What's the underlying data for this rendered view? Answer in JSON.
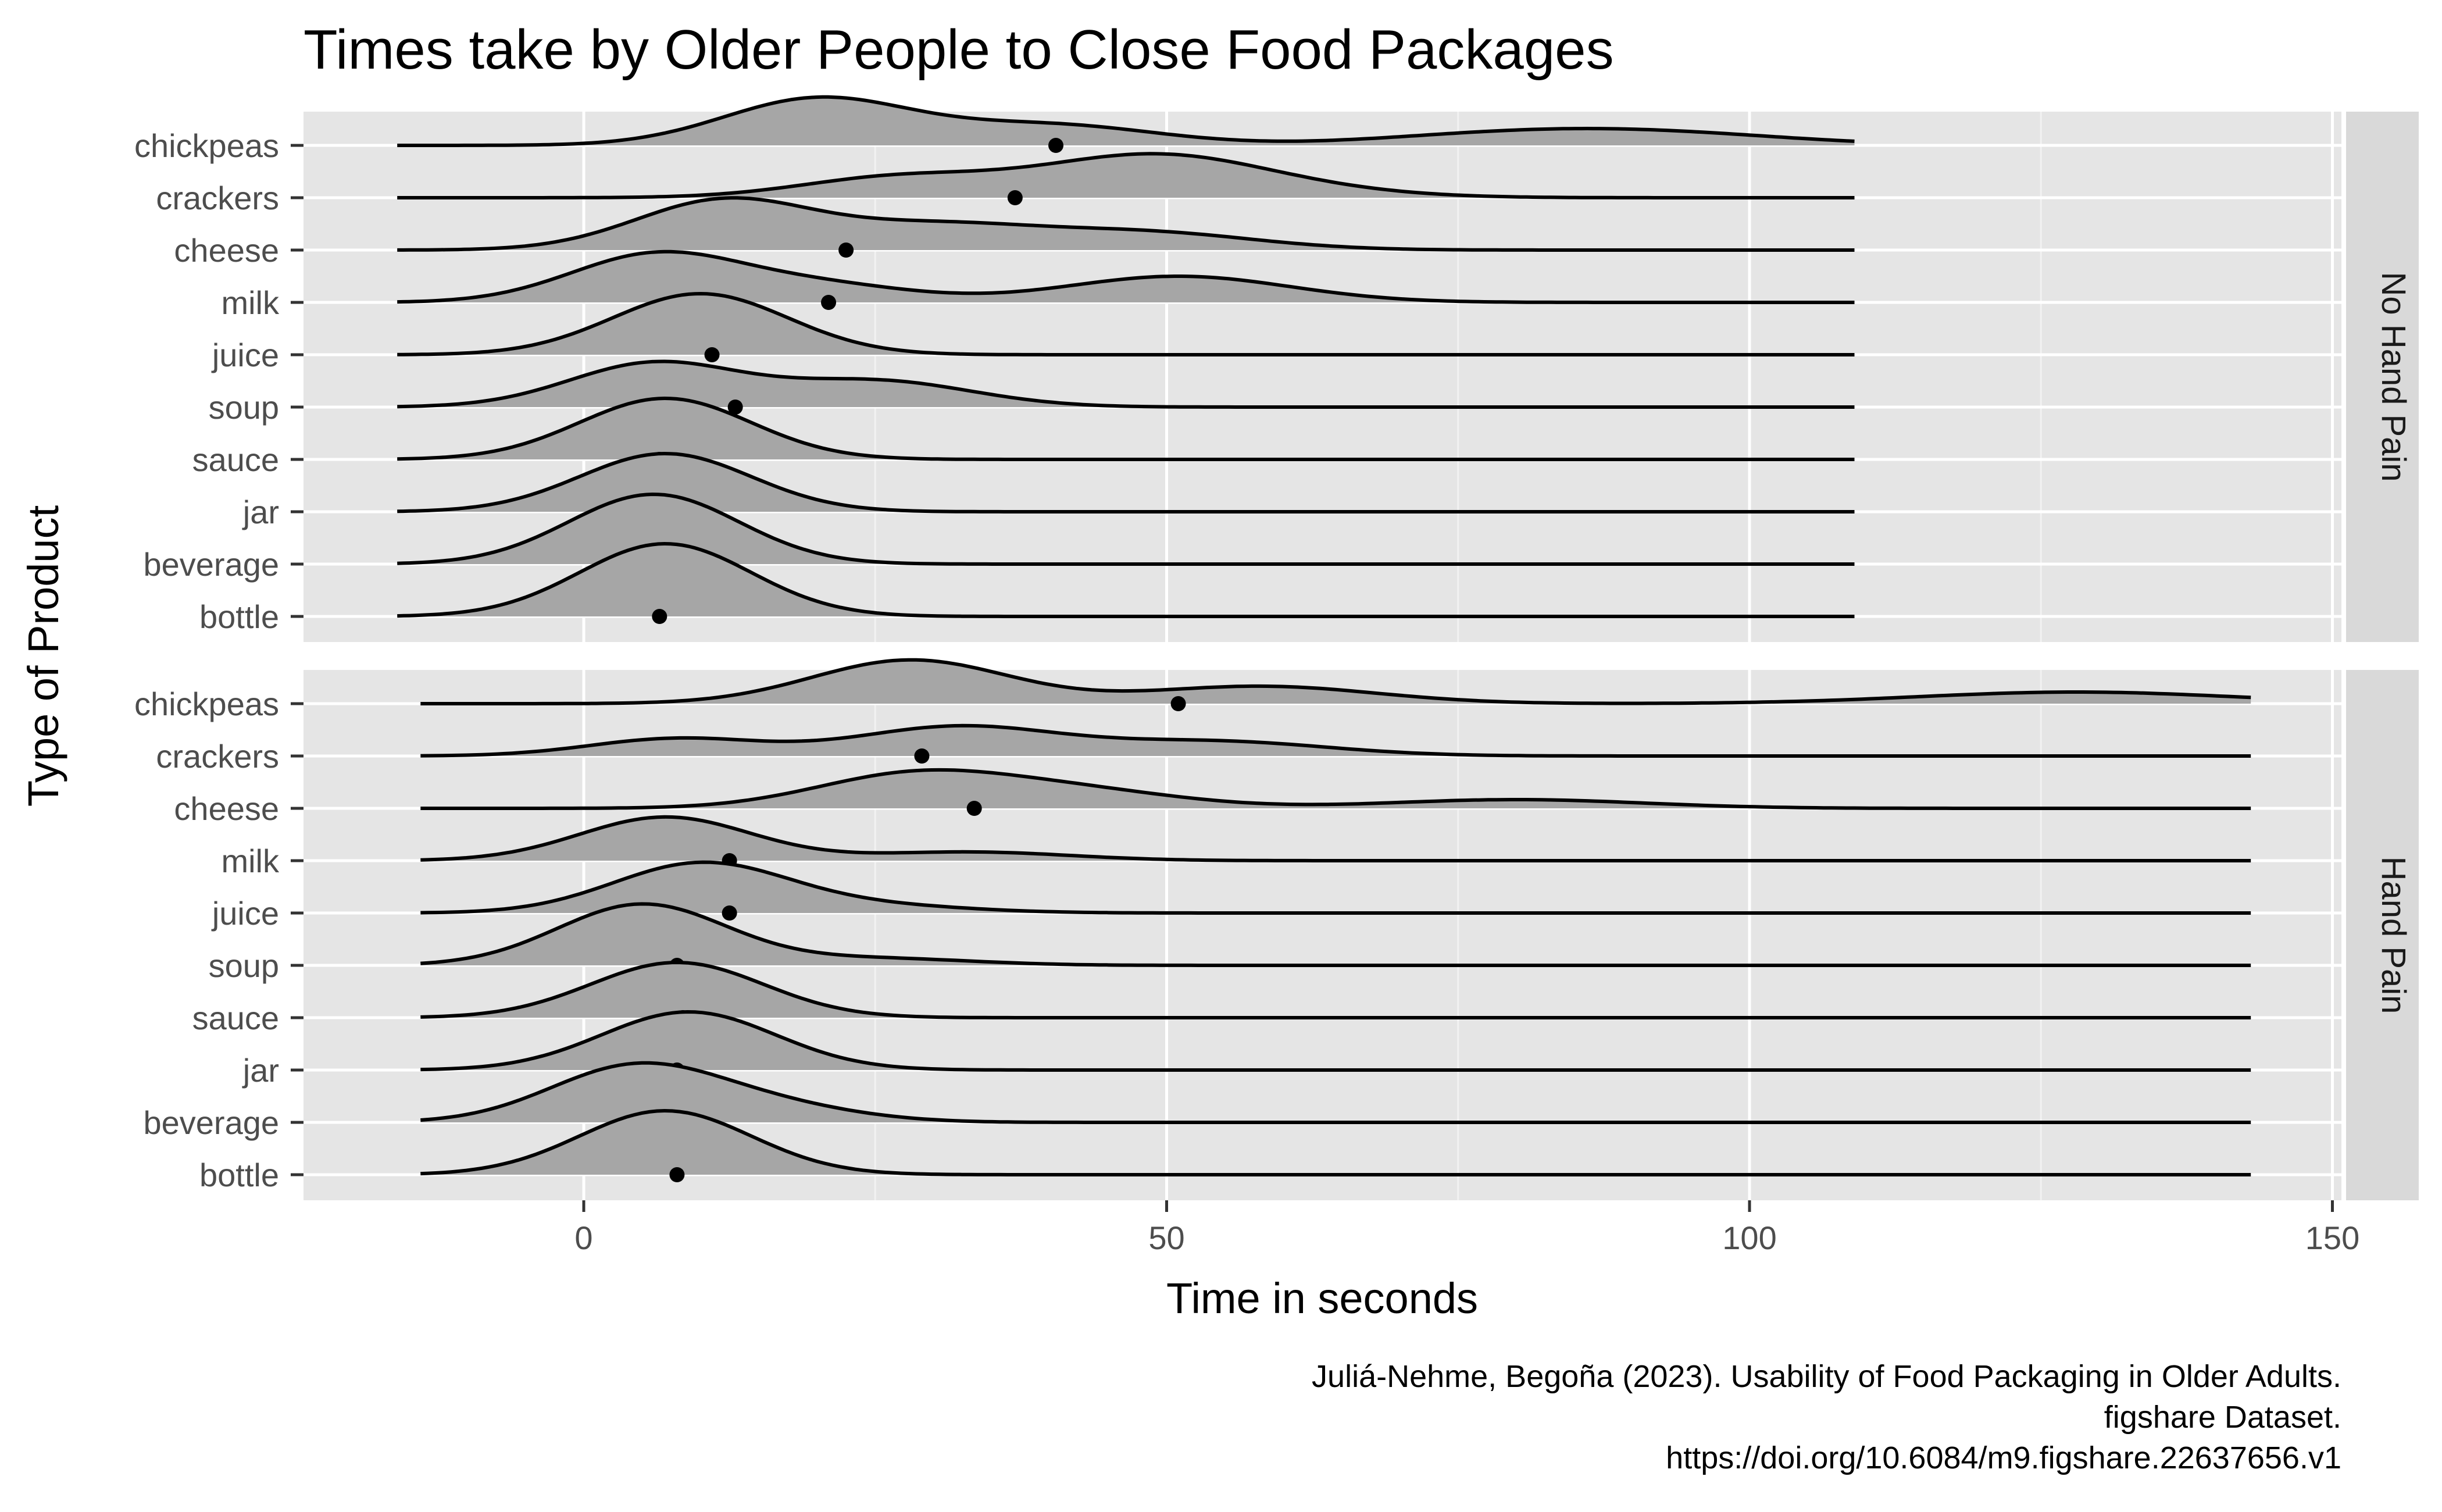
{
  "chart_data": {
    "type": "ridgeline",
    "title": "Times take by Older People to Close Food Packages",
    "xlabel": "Time in seconds",
    "ylabel": "Type of Product",
    "xlim": [
      -48,
      150
    ],
    "x_ticks": [
      0,
      50,
      100,
      150
    ],
    "caption": [
      "Juliá-Nehme, Begoña (2023). Usability of Food Packaging in Older Adults.",
      "figshare Dataset.",
      "https://doi.org/10.6084/m9.figshare.22637656.v1"
    ],
    "categories": [
      "chickpeas",
      "crackers",
      "cheese",
      "milk",
      "juice",
      "soup",
      "sauce",
      "jar",
      "beverage",
      "bottle"
    ],
    "panels": [
      {
        "label": "No Hand Pain",
        "x_range": [
          -16,
          109
        ],
        "points": [
          {
            "category": "chickpeas",
            "mean": 40.5,
            "density": [
              [
                20,
                0.8
              ],
              [
                40,
                0.35
              ],
              [
                78,
                0.15
              ],
              [
                92,
                0.2
              ]
            ]
          },
          {
            "category": "crackers",
            "mean": 37,
            "density": [
              [
                27,
                0.35
              ],
              [
                48,
                0.65
              ],
              [
                58,
                0.15
              ]
            ]
          },
          {
            "category": "cheese",
            "mean": 22.5,
            "density": [
              [
                12,
                0.85
              ],
              [
                30,
                0.4
              ],
              [
                48,
                0.3
              ]
            ]
          },
          {
            "category": "milk",
            "mean": 21,
            "density": [
              [
                6,
                0.8
              ],
              [
                20,
                0.3
              ],
              [
                51,
                0.45
              ]
            ]
          },
          {
            "category": "juice",
            "mean": 11,
            "density": [
              [
                10,
                1.05
              ]
            ]
          },
          {
            "category": "soup",
            "mean": 13,
            "density": [
              [
                6,
                0.75
              ],
              [
                25,
                0.45
              ]
            ]
          },
          {
            "category": "sauce",
            "mean": 6.5,
            "density": [
              [
                7,
                1.05
              ]
            ]
          },
          {
            "category": "jar",
            "mean": 7,
            "density": [
              [
                7,
                1.0
              ]
            ]
          },
          {
            "category": "beverage",
            "mean": 6,
            "density": [
              [
                6,
                1.2
              ]
            ]
          },
          {
            "category": "bottle",
            "mean": 6.5,
            "density": [
              [
                7,
                1.25
              ]
            ]
          }
        ]
      },
      {
        "label": "Hand Pain",
        "x_range": [
          -14,
          143
        ],
        "points": [
          {
            "category": "chickpeas",
            "mean": 51,
            "density": [
              [
                28,
                0.75
              ],
              [
                58,
                0.3
              ],
              [
                128,
                0.2
              ]
            ]
          },
          {
            "category": "crackers",
            "mean": 29,
            "density": [
              [
                8,
                0.3
              ],
              [
                32,
                0.5
              ],
              [
                54,
                0.25
              ]
            ]
          },
          {
            "category": "cheese",
            "mean": 33.5,
            "density": [
              [
                28,
                0.55
              ],
              [
                42,
                0.3
              ],
              [
                80,
                0.15
              ]
            ]
          },
          {
            "category": "milk",
            "mean": 12.5,
            "density": [
              [
                7,
                0.75
              ],
              [
                33,
                0.15
              ]
            ]
          },
          {
            "category": "juice",
            "mean": 12.5,
            "density": [
              [
                10,
                0.85
              ],
              [
                25,
                0.12
              ]
            ]
          },
          {
            "category": "soup",
            "mean": 8,
            "density": [
              [
                5,
                1.05
              ],
              [
                25,
                0.12
              ]
            ]
          },
          {
            "category": "sauce",
            "mean": 8.5,
            "density": [
              [
                8,
                0.95
              ]
            ]
          },
          {
            "category": "jar",
            "mean": 8,
            "density": [
              [
                9,
                1.0
              ]
            ]
          },
          {
            "category": "beverage",
            "mean": 8.5,
            "density": [
              [
                4,
                0.9
              ],
              [
                15,
                0.3
              ]
            ]
          },
          {
            "category": "bottle",
            "mean": 8,
            "density": [
              [
                7,
                1.1
              ]
            ]
          }
        ]
      }
    ]
  }
}
